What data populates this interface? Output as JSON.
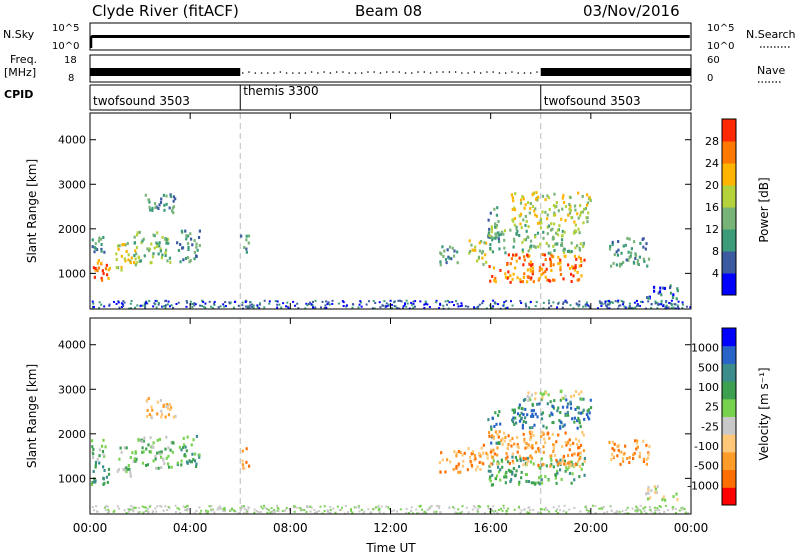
{
  "header": {
    "station": "Clyde River (fitACF)",
    "beam": "Beam 08",
    "date": "03/Nov/2016"
  },
  "top_panels": {
    "nsky_label": "N.Sky",
    "nsky_ticks": [
      "10^5",
      "10^0"
    ],
    "nsearch_label": "N.Search",
    "nsearch_ticks": [
      "10^5",
      "10^0"
    ],
    "freq_label_line1": "Freq.",
    "freq_label_line2": "[MHz]",
    "freq_ticks": [
      "18",
      "8"
    ],
    "nave_label": "Nave",
    "nave_ticks": [
      "60",
      "0"
    ],
    "cpid_label": "CPID",
    "modes": [
      {
        "name": "twofsound 3503",
        "start_hour": 0
      },
      {
        "name": "themis 3300",
        "start_hour": 6
      },
      {
        "name": "twofsound 3503",
        "start_hour": 18
      }
    ]
  },
  "colors": {
    "power_scale": [
      "#0000ff",
      "#3c5aa0",
      "#3c9b78",
      "#78b478",
      "#b4d23c",
      "#ffb400",
      "#ff7800",
      "#ff2800"
    ],
    "velocity_scale": [
      "#ff0000",
      "#ff6e00",
      "#ff9b28",
      "#ffc878",
      "#c8c8c8",
      "#78d250",
      "#3ca050",
      "#3c8c8c",
      "#2864c8",
      "#0000ff"
    ]
  },
  "chart_data": [
    {
      "type": "heatmap",
      "panel": "power",
      "ylabel": "Slant Range [km]",
      "yticks": [
        "4000",
        "3000",
        "2000",
        "1000"
      ],
      "ylim": [
        200,
        4600
      ],
      "xlim": [
        0,
        24
      ],
      "colorbar_label": "Power [dB]",
      "colorbar_ticks": [
        "28",
        "24",
        "20",
        "16",
        "12",
        "8",
        "4"
      ],
      "clim": [
        0,
        32
      ],
      "blobs": [
        {
          "t": 0.35,
          "r": 1150,
          "dt": 0.5,
          "dr": 350,
          "v": 26
        },
        {
          "t": 0.3,
          "r": 1600,
          "dt": 0.4,
          "dr": 300,
          "v": 12
        },
        {
          "t": 1.4,
          "r": 1400,
          "dt": 0.5,
          "dr": 400,
          "v": 18
        },
        {
          "t": 2.5,
          "r": 1600,
          "dt": 1.0,
          "dr": 450,
          "v": 14
        },
        {
          "t": 3.9,
          "r": 1650,
          "dt": 0.6,
          "dr": 450,
          "v": 13
        },
        {
          "t": 2.8,
          "r": 2600,
          "dt": 0.8,
          "dr": 300,
          "v": 11
        },
        {
          "t": 6.15,
          "r": 1650,
          "dt": 0.2,
          "dr": 300,
          "v": 12
        },
        {
          "t": 14.3,
          "r": 1400,
          "dt": 0.5,
          "dr": 300,
          "v": 10
        },
        {
          "t": 15.5,
          "r": 1500,
          "dt": 0.5,
          "dr": 350,
          "v": 18
        },
        {
          "t": 16.1,
          "r": 2200,
          "dt": 0.3,
          "dr": 500,
          "v": 10
        },
        {
          "t": 17.8,
          "r": 1150,
          "dt": 2.4,
          "dr": 400,
          "v": 28
        },
        {
          "t": 17.8,
          "r": 1800,
          "dt": 2.4,
          "dr": 400,
          "v": 16
        },
        {
          "t": 18.4,
          "r": 2500,
          "dt": 2.0,
          "dr": 450,
          "v": 20
        },
        {
          "t": 21.5,
          "r": 1500,
          "dt": 1.0,
          "dr": 400,
          "v": 10
        },
        {
          "t": 22.8,
          "r": 600,
          "dt": 0.8,
          "dr": 200,
          "v": 6
        }
      ]
    },
    {
      "type": "heatmap",
      "panel": "velocity",
      "ylabel": "Slant Range [km]",
      "yticks": [
        "4000",
        "3000",
        "2000",
        "1000"
      ],
      "ylim": [
        200,
        4600
      ],
      "xlim": [
        0,
        24
      ],
      "xticks": [
        "00:00",
        "04:00",
        "08:00",
        "12:00",
        "16:00",
        "20:00",
        "00:00"
      ],
      "xlabel": "Time UT",
      "colorbar_label": "Velocity [m s⁻¹]",
      "colorbar_ticks": [
        "1000",
        "500",
        "100",
        "25",
        "-25",
        "-100",
        "-500",
        "-1000"
      ],
      "blobs": [
        {
          "t": 0.35,
          "r": 1150,
          "dt": 0.5,
          "dr": 350,
          "c": 6
        },
        {
          "t": 0.3,
          "r": 1650,
          "dt": 0.4,
          "dr": 300,
          "c": 5
        },
        {
          "t": 1.4,
          "r": 1400,
          "dt": 0.5,
          "dr": 400,
          "c": 5
        },
        {
          "t": 2.5,
          "r": 1600,
          "dt": 1.0,
          "dr": 450,
          "c": 5
        },
        {
          "t": 3.9,
          "r": 1650,
          "dt": 0.6,
          "dr": 450,
          "c": 6
        },
        {
          "t": 2.8,
          "r": 2600,
          "dt": 0.8,
          "dr": 300,
          "c": 3
        },
        {
          "t": 6.15,
          "r": 1500,
          "dt": 0.2,
          "dr": 300,
          "c": 2
        },
        {
          "t": 14.4,
          "r": 1400,
          "dt": 0.6,
          "dr": 300,
          "c": 2
        },
        {
          "t": 15.4,
          "r": 1500,
          "dt": 0.6,
          "dr": 400,
          "c": 2
        },
        {
          "t": 16.1,
          "r": 2200,
          "dt": 0.3,
          "dr": 500,
          "c": 7
        },
        {
          "t": 17.8,
          "r": 1200,
          "dt": 2.4,
          "dr": 400,
          "c": 6
        },
        {
          "t": 17.8,
          "r": 1700,
          "dt": 2.4,
          "dr": 500,
          "c": 2
        },
        {
          "t": 18.4,
          "r": 2500,
          "dt": 2.0,
          "dr": 450,
          "c": 7
        },
        {
          "t": 18.5,
          "r": 2900,
          "dt": 1.4,
          "dr": 150,
          "c": 4
        },
        {
          "t": 21.5,
          "r": 1600,
          "dt": 1.0,
          "dr": 350,
          "c": 2
        },
        {
          "t": 22.8,
          "r": 700,
          "dt": 0.8,
          "dr": 200,
          "c": 4
        }
      ]
    }
  ]
}
